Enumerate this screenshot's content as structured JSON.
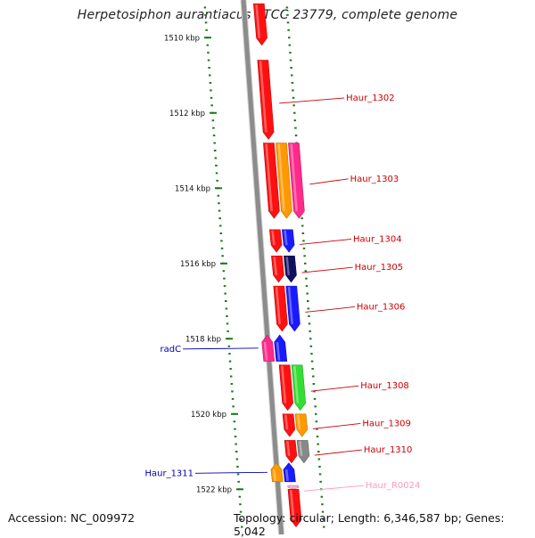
{
  "title": "Herpetosiphon aurantiacus ATCC 23779, complete genome",
  "footer": {
    "accession": "Accession: NC_009972",
    "topology": "Topology: circular; Length: 6,346,587 bp; Genes: 5,042"
  },
  "colors": {
    "backbone": "#8c8c8c",
    "tick": "#1a7a1a",
    "red": "#ff1010",
    "pink": "#ff2a8a",
    "orange": "#ff9900",
    "blue": "#1a1aff",
    "green": "#33dd33",
    "gray": "#888888",
    "navy": "#101060",
    "light_pink": "#ffaacc",
    "label_red": "#cc0000",
    "label_blue": "#0000aa",
    "label_pink": "#ff99bb"
  },
  "kbp_labels": [
    {
      "pos": 1510,
      "text": "1510 kbp"
    },
    {
      "pos": 1512,
      "text": "1512 kbp"
    },
    {
      "pos": 1514,
      "text": "1514 kbp"
    },
    {
      "pos": 1516,
      "text": "1516 kbp"
    },
    {
      "pos": 1518,
      "text": "1518 kbp"
    },
    {
      "pos": 1520,
      "text": "1520 kbp"
    },
    {
      "pos": 1522,
      "text": "1522 kbp"
    }
  ],
  "genes": [
    {
      "start": 1509.1,
      "end": 1510.2,
      "strand": 1,
      "track": 0,
      "color": "red"
    },
    {
      "start": 1510.6,
      "end": 1512.7,
      "strand": 1,
      "track": 0,
      "color": "red",
      "label": "Haur_1302",
      "side": "right",
      "label_color": "label_red"
    },
    {
      "start": 1512.8,
      "end": 1514.8,
      "strand": 1,
      "track": 0,
      "color": "red"
    },
    {
      "start": 1512.8,
      "end": 1514.8,
      "strand": 1,
      "track": 1,
      "color": "orange"
    },
    {
      "start": 1512.8,
      "end": 1514.8,
      "strand": 1,
      "track": 2,
      "color": "pink",
      "label": "Haur_1303",
      "side": "right",
      "label_color": "label_red"
    },
    {
      "start": 1515.1,
      "end": 1515.7,
      "strand": 1,
      "track": 0,
      "color": "red"
    },
    {
      "start": 1515.1,
      "end": 1515.7,
      "strand": 1,
      "track": 1,
      "color": "blue",
      "label": "Haur_1304",
      "side": "right",
      "label_color": "label_red"
    },
    {
      "start": 1515.8,
      "end": 1516.5,
      "strand": 1,
      "track": 0,
      "color": "red"
    },
    {
      "start": 1515.8,
      "end": 1516.5,
      "strand": 1,
      "track": 1,
      "color": "navy",
      "label": "Haur_1305",
      "side": "right",
      "label_color": "label_red"
    },
    {
      "start": 1516.6,
      "end": 1517.8,
      "strand": 1,
      "track": 0,
      "color": "red"
    },
    {
      "start": 1516.6,
      "end": 1517.8,
      "strand": 1,
      "track": 1,
      "color": "blue",
      "label": "Haur_1306",
      "side": "right",
      "label_color": "label_red"
    },
    {
      "start": 1517.9,
      "end": 1518.6,
      "strand": -1,
      "track": 0,
      "color": "pink",
      "label": "radC",
      "side": "left",
      "label_color": "label_blue"
    },
    {
      "start": 1517.9,
      "end": 1518.6,
      "strand": -1,
      "track": 1,
      "color": "blue"
    },
    {
      "start": 1518.7,
      "end": 1519.9,
      "strand": 1,
      "track": 0,
      "color": "red"
    },
    {
      "start": 1518.7,
      "end": 1519.9,
      "strand": 1,
      "track": 1,
      "color": "green",
      "label": "Haur_1308",
      "side": "right",
      "label_color": "label_red"
    },
    {
      "start": 1520.0,
      "end": 1520.6,
      "strand": 1,
      "track": 0,
      "color": "red"
    },
    {
      "start": 1520.0,
      "end": 1520.6,
      "strand": 1,
      "track": 1,
      "color": "orange",
      "label": "Haur_1309",
      "side": "right",
      "label_color": "label_red"
    },
    {
      "start": 1520.7,
      "end": 1521.3,
      "strand": 1,
      "track": 0,
      "color": "red"
    },
    {
      "start": 1520.7,
      "end": 1521.3,
      "strand": 1,
      "track": 1,
      "color": "gray",
      "label": "Haur_1310",
      "side": "right",
      "label_color": "label_red"
    },
    {
      "start": 1521.3,
      "end": 1521.8,
      "strand": -1,
      "track": 0,
      "color": "orange",
      "label": "Haur_1311",
      "side": "left",
      "label_color": "label_blue"
    },
    {
      "start": 1521.3,
      "end": 1521.8,
      "strand": -1,
      "track": 1,
      "color": "blue"
    },
    {
      "start": 1521.9,
      "end": 1522.0,
      "strand": 1,
      "track": 0,
      "color": "light_pink",
      "label": "Haur_R0024",
      "side": "right",
      "label_color": "label_pink"
    },
    {
      "start": 1522.0,
      "end": 1523.0,
      "strand": 1,
      "track": 0,
      "color": "red"
    }
  ]
}
